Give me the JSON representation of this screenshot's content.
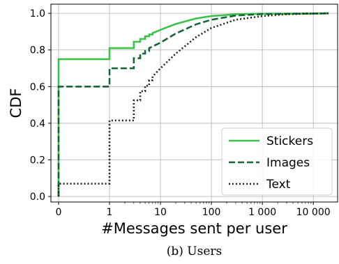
{
  "caption": "(b) Users",
  "chart_data": {
    "type": "line",
    "xlabel": "#Messages sent per user",
    "ylabel": "CDF",
    "x_scale": "symlog",
    "xlim": [
      -0.15,
      30000
    ],
    "ylim": [
      -0.03,
      1.05
    ],
    "grid": true,
    "legend_position": "lower-right",
    "x_ticks": [
      {
        "value": 0,
        "label": "0"
      },
      {
        "value": 1,
        "label": "1"
      },
      {
        "value": 10,
        "label": "10"
      },
      {
        "value": 100,
        "label": "100"
      },
      {
        "value": 1000,
        "label": "1 000"
      },
      {
        "value": 10000,
        "label": "10 000"
      }
    ],
    "y_ticks": [
      {
        "value": 0.0,
        "label": "0.0"
      },
      {
        "value": 0.2,
        "label": "0.2"
      },
      {
        "value": 0.4,
        "label": "0.4"
      },
      {
        "value": 0.6,
        "label": "0.6"
      },
      {
        "value": 0.8,
        "label": "0.8"
      },
      {
        "value": 1.0,
        "label": "1.0"
      }
    ],
    "series": [
      {
        "name": "Stickers",
        "color": "#3cc24a",
        "dash": "solid",
        "points": [
          [
            0,
            0
          ],
          [
            0,
            0.75
          ],
          [
            1,
            0.75
          ],
          [
            1,
            0.81
          ],
          [
            3,
            0.81
          ],
          [
            3,
            0.845
          ],
          [
            4,
            0.845
          ],
          [
            4,
            0.86
          ],
          [
            5,
            0.86
          ],
          [
            5,
            0.875
          ],
          [
            6,
            0.875
          ],
          [
            6,
            0.885
          ],
          [
            7,
            0.885
          ],
          [
            7,
            0.892
          ],
          [
            10,
            0.91
          ],
          [
            20,
            0.942
          ],
          [
            50,
            0.972
          ],
          [
            100,
            0.985
          ],
          [
            300,
            0.995
          ],
          [
            1000,
            0.998
          ],
          [
            10000,
            0.999
          ],
          [
            20000,
            1.0
          ]
        ]
      },
      {
        "name": "Images",
        "color": "#16643a",
        "dash": "dashed",
        "points": [
          [
            0,
            0
          ],
          [
            0,
            0.6
          ],
          [
            1,
            0.6
          ],
          [
            1,
            0.7
          ],
          [
            3,
            0.7
          ],
          [
            3,
            0.755
          ],
          [
            4,
            0.755
          ],
          [
            4,
            0.78
          ],
          [
            5,
            0.78
          ],
          [
            5,
            0.795
          ],
          [
            6,
            0.795
          ],
          [
            6,
            0.81
          ],
          [
            10,
            0.84
          ],
          [
            20,
            0.89
          ],
          [
            50,
            0.94
          ],
          [
            100,
            0.965
          ],
          [
            300,
            0.988
          ],
          [
            1000,
            0.996
          ],
          [
            10000,
            0.999
          ],
          [
            20000,
            1.0
          ]
        ]
      },
      {
        "name": "Text",
        "color": "#1b2a17",
        "dash": "dotted",
        "points": [
          [
            0,
            0
          ],
          [
            0,
            0.07
          ],
          [
            1,
            0.07
          ],
          [
            1,
            0.415
          ],
          [
            3,
            0.415
          ],
          [
            3,
            0.525
          ],
          [
            4,
            0.525
          ],
          [
            4,
            0.575
          ],
          [
            5,
            0.575
          ],
          [
            5,
            0.605
          ],
          [
            6,
            0.605
          ],
          [
            6,
            0.635
          ],
          [
            7,
            0.635
          ],
          [
            7,
            0.655
          ],
          [
            10,
            0.7
          ],
          [
            20,
            0.78
          ],
          [
            50,
            0.87
          ],
          [
            100,
            0.92
          ],
          [
            300,
            0.965
          ],
          [
            1000,
            0.985
          ],
          [
            3000,
            0.995
          ],
          [
            10000,
            0.999
          ],
          [
            20000,
            1.0
          ]
        ]
      }
    ]
  }
}
